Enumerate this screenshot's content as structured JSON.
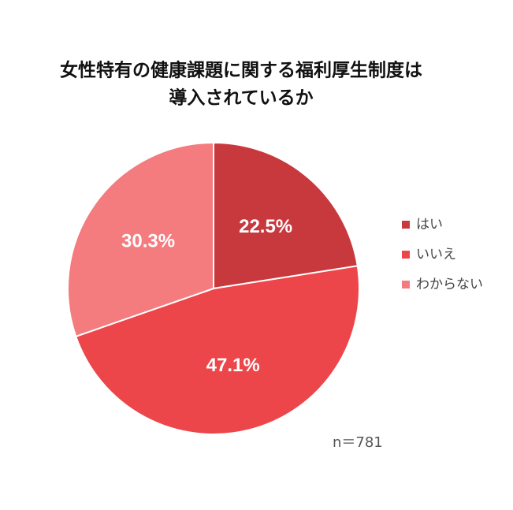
{
  "chart_data": {
    "type": "pie",
    "title": [
      "女性特有の健康課題に関する福利厚生制度は",
      "導入されているか"
    ],
    "categories": [
      "はい",
      "いいえ",
      "わからない"
    ],
    "values": [
      22.5,
      47.1,
      30.3
    ],
    "value_labels": [
      "22.5%",
      "47.1%",
      "30.3%"
    ],
    "colors": [
      "#c8393e",
      "#ec464b",
      "#f47b7e"
    ],
    "annotation": "n＝781",
    "legend": "right"
  }
}
